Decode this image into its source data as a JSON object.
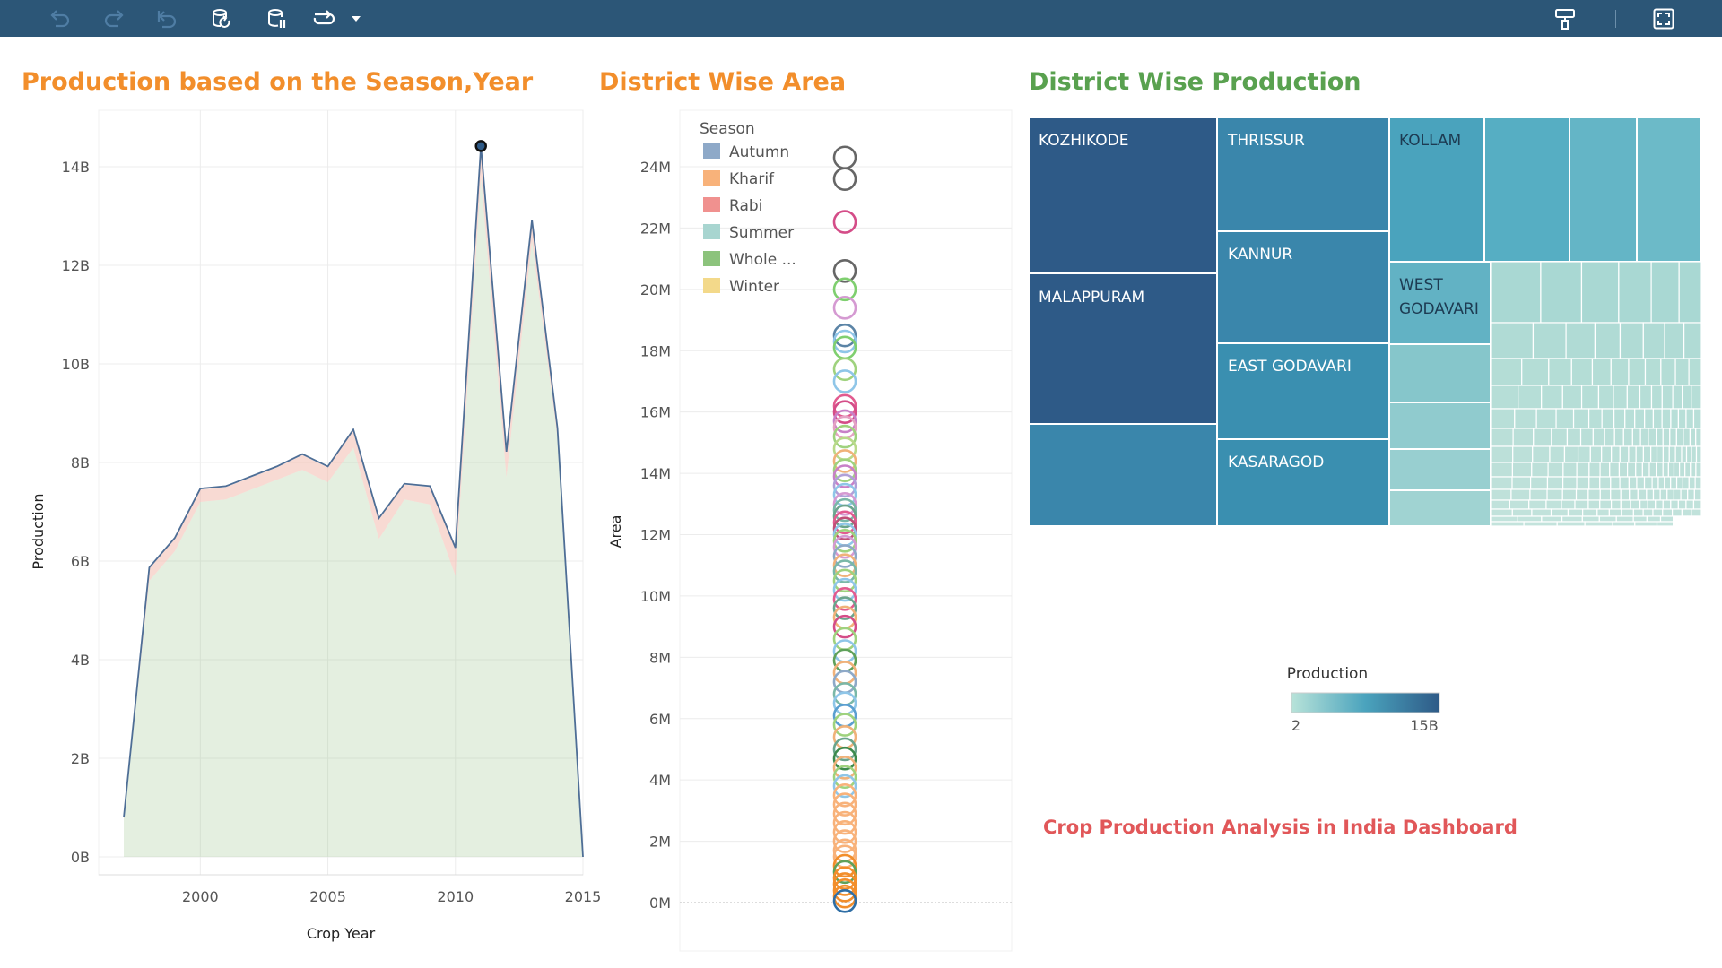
{
  "toolbar": {
    "icons": [
      "undo-icon",
      "redo-icon",
      "revert-icon",
      "refresh-data-icon",
      "pause-updates-icon",
      "swap-icon",
      "dropdown-caret-icon",
      "format-painter-icon",
      "fullscreen-icon"
    ]
  },
  "colors": {
    "toolbar": "#2c5677",
    "title_orange": "#f28e2b",
    "title_green": "#59a14f",
    "footer_red": "#e15759"
  },
  "dashboard_title": "Crop Production Analysis in India Dashboard",
  "chart_data": [
    {
      "type": "area",
      "title": "Production based on the Season,Year",
      "xlabel": "Crop Year",
      "ylabel": "Production",
      "xlim": [
        1997,
        2015
      ],
      "ylim": [
        0,
        15
      ],
      "xticks": [
        "2000",
        "2005",
        "2010",
        "2015"
      ],
      "yticks": [
        "0B",
        "2B",
        "4B",
        "6B",
        "8B",
        "10B",
        "12B",
        "14B"
      ],
      "x": [
        1997,
        1998,
        1999,
        2000,
        2001,
        2002,
        2003,
        2004,
        2005,
        2006,
        2007,
        2008,
        2009,
        2010,
        2011,
        2012,
        2013,
        2014,
        2015
      ],
      "series": [
        {
          "color": "#9fc58e",
          "values": [
            0.75,
            5.6,
            6.2,
            7.2,
            7.25,
            7.45,
            7.65,
            7.85,
            7.6,
            8.3,
            6.45,
            7.25,
            7.15,
            5.7,
            13.8,
            7.7,
            12.5,
            8.5,
            0
          ]
        },
        {
          "color": "#f1b6a8",
          "values": [
            0.05,
            0.25,
            0.25,
            0.25,
            0.25,
            0.25,
            0.25,
            0.3,
            0.3,
            0.35,
            0.4,
            0.3,
            0.35,
            0.55,
            0.6,
            0.5,
            0.4,
            0.15,
            0
          ]
        },
        {
          "color": "#dae6ec",
          "values": [
            0,
            0.02,
            0.02,
            0.02,
            0.02,
            0.02,
            0.02,
            0.02,
            0.02,
            0.02,
            0.02,
            0.02,
            0.02,
            0.02,
            0.02,
            0.02,
            0.02,
            0.05,
            0
          ]
        }
      ],
      "total": [
        0.8,
        5.87,
        6.47,
        7.47,
        7.52,
        7.72,
        7.92,
        8.17,
        7.92,
        8.67,
        6.87,
        7.57,
        7.52,
        6.27,
        14.42,
        8.22,
        12.92,
        8.7,
        0
      ],
      "peak_marker": {
        "x": 2011,
        "y": 14.42
      }
    },
    {
      "type": "scatter",
      "title": "District Wise Area",
      "xlabel": "",
      "ylabel": "Area",
      "ylim": [
        0,
        25
      ],
      "yticks": [
        "0M",
        "2M",
        "4M",
        "6M",
        "8M",
        "10M",
        "12M",
        "14M",
        "16M",
        "18M",
        "20M",
        "22M",
        "24M"
      ],
      "legend_title": "Season",
      "legend": [
        {
          "name": "Autumn",
          "color": "#8ea9c8"
        },
        {
          "name": "Kharif",
          "color": "#f8b27a"
        },
        {
          "name": "Rabi",
          "color": "#f0918f"
        },
        {
          "name": "Summer",
          "color": "#a8d5d0"
        },
        {
          "name": "Whole ...",
          "color": "#8cc37c"
        },
        {
          "name": "Winter",
          "color": "#f3d98a"
        }
      ],
      "points": [
        {
          "y": 24.3,
          "c": "#666666"
        },
        {
          "y": 23.6,
          "c": "#666666"
        },
        {
          "y": 22.2,
          "c": "#d44d88"
        },
        {
          "y": 20.6,
          "c": "#666666"
        },
        {
          "y": 20.0,
          "c": "#7fcf6f"
        },
        {
          "y": 19.4,
          "c": "#d59ad2"
        },
        {
          "y": 18.5,
          "c": "#5b84a6"
        },
        {
          "y": 18.3,
          "c": "#8fc6e8"
        },
        {
          "y": 18.1,
          "c": "#7fcf6f"
        },
        {
          "y": 17.4,
          "c": "#9fd27e"
        },
        {
          "y": 17.0,
          "c": "#8fc6e8"
        },
        {
          "y": 16.2,
          "c": "#e25b8f"
        },
        {
          "y": 16.0,
          "c": "#d44d88"
        },
        {
          "y": 15.7,
          "c": "#c880c8"
        },
        {
          "y": 15.5,
          "c": "#e5a2c4"
        },
        {
          "y": 15.2,
          "c": "#9fd27e"
        },
        {
          "y": 14.8,
          "c": "#b9d98a"
        },
        {
          "y": 14.4,
          "c": "#f0b27a"
        },
        {
          "y": 14.1,
          "c": "#9fd27e"
        },
        {
          "y": 13.9,
          "c": "#c880c8"
        },
        {
          "y": 13.6,
          "c": "#b0a0d8"
        },
        {
          "y": 13.3,
          "c": "#8fc6e8"
        },
        {
          "y": 13.0,
          "c": "#d59ad2"
        },
        {
          "y": 12.8,
          "c": "#7ab8a8"
        },
        {
          "y": 12.6,
          "c": "#6ba58d"
        },
        {
          "y": 12.4,
          "c": "#e25b8f"
        },
        {
          "y": 12.2,
          "c": "#c05078"
        },
        {
          "y": 12.0,
          "c": "#8fc6e8"
        },
        {
          "y": 11.8,
          "c": "#9fd27e"
        },
        {
          "y": 11.6,
          "c": "#d59ad2"
        },
        {
          "y": 11.3,
          "c": "#8ea9c8"
        },
        {
          "y": 11.0,
          "c": "#f0b27a"
        },
        {
          "y": 10.8,
          "c": "#7ab8a8"
        },
        {
          "y": 10.5,
          "c": "#9fd27e"
        },
        {
          "y": 10.2,
          "c": "#8fc6e8"
        },
        {
          "y": 9.9,
          "c": "#e25b8f"
        },
        {
          "y": 9.6,
          "c": "#6ba58d"
        },
        {
          "y": 9.3,
          "c": "#f0b27a"
        },
        {
          "y": 9.0,
          "c": "#d44d88"
        },
        {
          "y": 8.6,
          "c": "#9fd27e"
        },
        {
          "y": 8.2,
          "c": "#8fc6e8"
        },
        {
          "y": 7.9,
          "c": "#5fa15a"
        },
        {
          "y": 7.5,
          "c": "#f0b27a"
        },
        {
          "y": 7.2,
          "c": "#8ea9c8"
        },
        {
          "y": 6.8,
          "c": "#7ab8a8"
        },
        {
          "y": 6.5,
          "c": "#8fc6e8"
        },
        {
          "y": 6.1,
          "c": "#5b9fd0"
        },
        {
          "y": 5.8,
          "c": "#9fd27e"
        },
        {
          "y": 5.4,
          "c": "#f0b27a"
        },
        {
          "y": 5.0,
          "c": "#6ba58d"
        },
        {
          "y": 4.7,
          "c": "#3d8a4d"
        },
        {
          "y": 4.4,
          "c": "#f0b27a"
        },
        {
          "y": 4.1,
          "c": "#9fd27e"
        },
        {
          "y": 3.8,
          "c": "#8fc6e8"
        },
        {
          "y": 3.5,
          "c": "#f8b27a"
        },
        {
          "y": 3.2,
          "c": "#f8b27a"
        },
        {
          "y": 2.9,
          "c": "#f8b27a"
        },
        {
          "y": 2.6,
          "c": "#f8b27a"
        },
        {
          "y": 2.3,
          "c": "#f8b27a"
        },
        {
          "y": 2.0,
          "c": "#f8b27a"
        },
        {
          "y": 1.7,
          "c": "#f8b27a"
        },
        {
          "y": 1.5,
          "c": "#f8b27a"
        },
        {
          "y": 1.2,
          "c": "#f28e2b"
        },
        {
          "y": 1.0,
          "c": "#5fa15a"
        },
        {
          "y": 0.8,
          "c": "#f28e2b"
        },
        {
          "y": 0.6,
          "c": "#f28e2b"
        },
        {
          "y": 0.4,
          "c": "#f28e2b"
        },
        {
          "y": 0.2,
          "c": "#f28e2b"
        },
        {
          "y": 0.05,
          "c": "#2f6ea5"
        }
      ]
    },
    {
      "type": "treemap",
      "title": "District Wise Production",
      "color_legend": {
        "title": "Production",
        "min": "2",
        "max": "15B"
      },
      "labels": [
        "KOZHIKODE",
        "MALAPPURAM",
        "THRISSUR",
        "KANNUR",
        "EAST GODAVARI",
        "KASARAGOD",
        "KOLLAM",
        "WEST GODAVARI"
      ]
    }
  ]
}
